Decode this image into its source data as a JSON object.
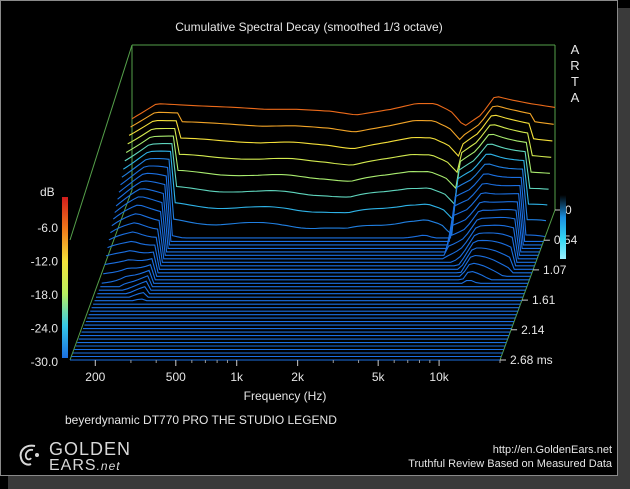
{
  "chart_data": {
    "type": "waterfall",
    "title": "Cumulative Spectral Decay (smoothed 1/3 octave)",
    "vendor": "ARTA",
    "subtitle": "beyerdynamic DT770 PRO THE STUDIO LEGEND",
    "xlabel": "Frequency (Hz)",
    "x_ticks": [
      "200",
      "500",
      "1k",
      "2k",
      "5k",
      "10k"
    ],
    "x_tick_values": [
      200,
      500,
      1000,
      2000,
      5000,
      10000
    ],
    "xlim": [
      150,
      20000
    ],
    "xscale": "log",
    "time_label": "ms",
    "time_ticks": [
      "0",
      "0.54",
      "1.07",
      "1.61",
      "2.14",
      "2.68 ms"
    ],
    "time_values": [
      0,
      0.54,
      1.07,
      1.61,
      2.14,
      2.68
    ],
    "colorbar_label": "dB",
    "colorbar_ticks": [
      "-6.0",
      "-12.0",
      "-18.0",
      "-24.0",
      "-30.0"
    ],
    "zlim": [
      -30,
      0
    ],
    "initial_response_db": [
      [
        150,
        -6
      ],
      [
        200,
        -2
      ],
      [
        300,
        -2.5
      ],
      [
        500,
        -3
      ],
      [
        700,
        -3.5
      ],
      [
        1000,
        -3.5
      ],
      [
        1500,
        -4
      ],
      [
        2000,
        -5
      ],
      [
        3000,
        -3.5
      ],
      [
        4000,
        -2
      ],
      [
        5000,
        -2
      ],
      [
        6000,
        -4
      ],
      [
        7000,
        -8
      ],
      [
        8500,
        -5
      ],
      [
        10000,
        0
      ],
      [
        12000,
        -1
      ],
      [
        15000,
        -2
      ],
      [
        20000,
        -3
      ]
    ],
    "decay_floor_db": -30
  },
  "branding": {
    "logo_line1": "GOLDEN",
    "logo_line2": "EARS",
    "logo_suffix": ".net",
    "url": "http://en.GoldenEars.net",
    "tagline": "Truthful Review Based on Measured Data"
  }
}
